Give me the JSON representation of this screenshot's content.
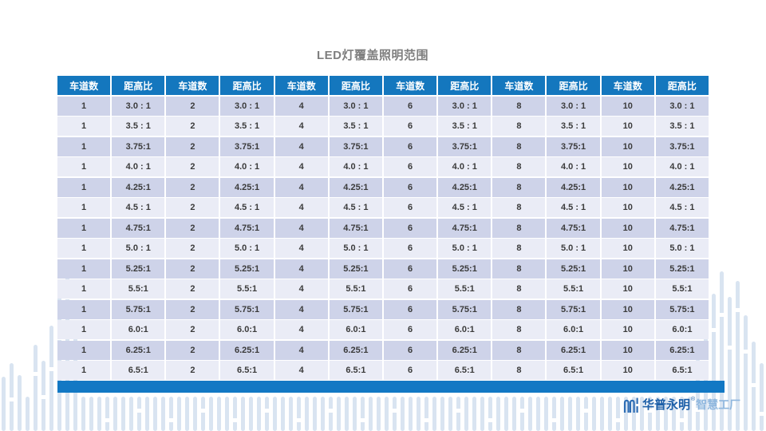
{
  "slide": {
    "title": "LED灯覆盖照明范围"
  },
  "table": {
    "lane_header": "车道数",
    "ratio_header": "距高比",
    "lane_groups": [
      "1",
      "2",
      "4",
      "6",
      "8",
      "10"
    ],
    "ratios": [
      "3.0 : 1",
      "3.5 : 1",
      "3.75:1",
      "4.0 : 1",
      "4.25:1",
      "4.5 : 1",
      "4.75:1",
      "5.0 : 1",
      "5.25:1",
      "5.5:1",
      "5.75:1",
      "6.0:1",
      "6.25:1",
      "6.5:1"
    ]
  },
  "logo": {
    "icon": "factory-arches-icon",
    "brand": "华普永明",
    "registered_mark": "®",
    "suffix": "智慧工厂"
  },
  "colors": {
    "header_blue": "#1477BE",
    "row_dark": "#CED3E9",
    "row_light": "#EAECF6",
    "footer_blue": "#1278C4",
    "cell_text": "#3B3B3B",
    "title_gray": "#7F7F7F",
    "decor_bar": "#D9E4F1",
    "logo_dark_blue": "#1C5FA8",
    "logo_light_blue": "#8FB7DE"
  }
}
